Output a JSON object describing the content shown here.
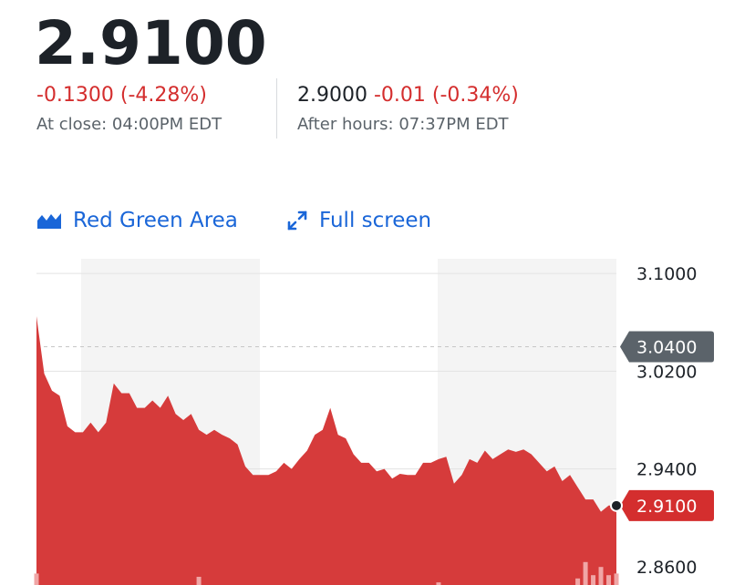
{
  "quote": {
    "price": "2.9100",
    "change": "-0.1300 (-4.28%)",
    "close_label": "At close: 04:00PM EDT",
    "after_price": "2.9000",
    "after_change": "-0.01 (-0.34%)",
    "after_label": "After hours: 07:37PM EDT"
  },
  "toolbar": {
    "chart_type_label": "Red Green Area",
    "fullscreen_label": "Full screen"
  },
  "colors": {
    "negative": "#d42e2e",
    "accent": "#1a66d8",
    "area": "#d63b3b",
    "volume": "#f0a6a6"
  },
  "chart_data": {
    "type": "area",
    "y_ticks": [
      "3.1000",
      "3.0200",
      "2.9400",
      "2.8600"
    ],
    "ylim": [
      2.845,
      3.112
    ],
    "reference_tag": "3.0400",
    "reference_value": 3.04,
    "current_tag": "2.9100",
    "current_value": 2.91,
    "values": [
      3.065,
      3.018,
      3.004,
      3.0,
      2.975,
      2.97,
      2.97,
      2.978,
      2.97,
      2.978,
      3.01,
      3.002,
      3.002,
      2.99,
      2.99,
      2.996,
      2.99,
      3.0,
      2.985,
      2.98,
      2.985,
      2.972,
      2.968,
      2.972,
      2.968,
      2.965,
      2.96,
      2.942,
      2.935,
      2.935,
      2.935,
      2.938,
      2.945,
      2.94,
      2.948,
      2.955,
      2.968,
      2.972,
      2.99,
      2.968,
      2.965,
      2.952,
      2.945,
      2.945,
      2.938,
      2.94,
      2.932,
      2.936,
      2.935,
      2.935,
      2.945,
      2.945,
      2.948,
      2.95,
      2.928,
      2.935,
      2.948,
      2.945,
      2.955,
      2.948,
      2.952,
      2.956,
      2.954,
      2.956,
      2.952,
      2.945,
      2.938,
      2.942,
      2.93,
      2.935,
      2.925,
      2.915,
      2.915,
      2.905,
      2.91,
      2.91
    ],
    "volume_bars": [
      {
        "i": 0,
        "v": 0.35
      },
      {
        "i": 21,
        "v": 0.25
      },
      {
        "i": 52,
        "v": 0.08
      },
      {
        "i": 70,
        "v": 0.2
      },
      {
        "i": 71,
        "v": 0.7
      },
      {
        "i": 72,
        "v": 0.3
      },
      {
        "i": 73,
        "v": 0.55
      },
      {
        "i": 74,
        "v": 0.3
      },
      {
        "i": 75,
        "v": 0.35
      }
    ]
  }
}
